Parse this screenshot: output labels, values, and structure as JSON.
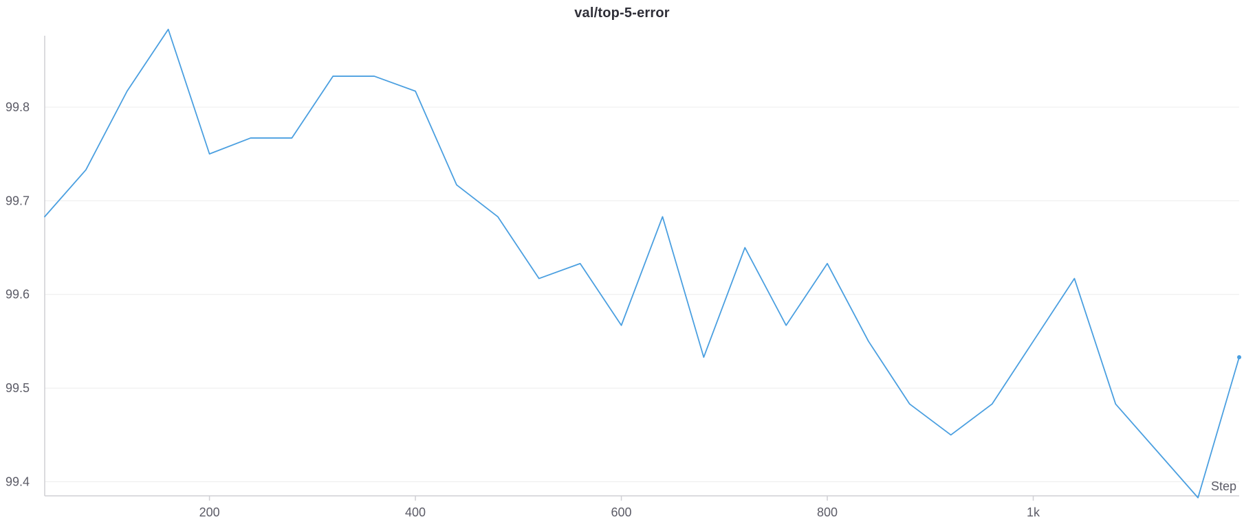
{
  "chart_data": {
    "type": "line",
    "title": "val/top-5-error",
    "xlabel": "Step",
    "ylabel": "",
    "xlim": [
      40,
      1200
    ],
    "ylim": [
      99.385,
      99.885
    ],
    "grid": true,
    "x_ticks": [
      200,
      400,
      600,
      800,
      1000
    ],
    "x_tick_labels": [
      "200",
      "400",
      "600",
      "800",
      "1k"
    ],
    "y_ticks": [
      99.4,
      99.5,
      99.6,
      99.7,
      99.8
    ],
    "y_tick_labels": [
      "99.4",
      "99.5",
      "99.6",
      "99.7",
      "99.8"
    ],
    "colors": {
      "line": "#4a9fe0",
      "grid": "#ececec",
      "axis": "#cfcfd4"
    },
    "series": [
      {
        "x": [
          40,
          80,
          120,
          160,
          200,
          240,
          280,
          320,
          360,
          400,
          440,
          480,
          520,
          560,
          600,
          640,
          680,
          720,
          760,
          800,
          840,
          880,
          920,
          960,
          1000,
          1040,
          1080,
          1120,
          1160,
          1200
        ],
        "values": [
          99.683,
          99.733,
          99.817,
          99.883,
          99.75,
          99.767,
          99.767,
          99.833,
          99.833,
          99.817,
          99.717,
          99.683,
          99.617,
          99.633,
          99.567,
          99.683,
          99.533,
          99.65,
          99.567,
          99.633,
          99.55,
          99.483,
          99.45,
          99.483,
          99.55,
          99.617,
          99.483,
          99.433,
          99.383,
          99.533
        ]
      }
    ]
  }
}
